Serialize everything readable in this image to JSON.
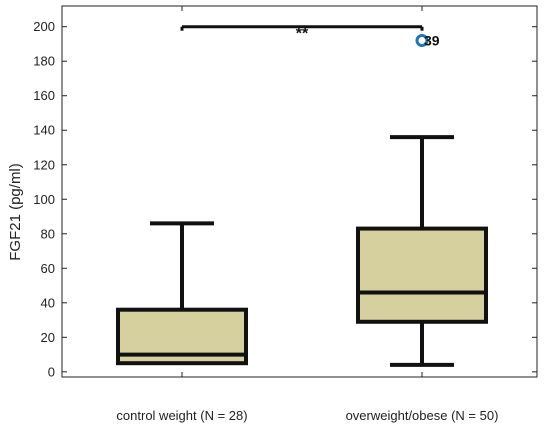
{
  "chart_data": {
    "type": "box",
    "ylabel": "FGF21 (pg/ml)",
    "ylim": [
      -3,
      212
    ],
    "y_ticks": [
      0,
      20,
      40,
      60,
      80,
      100,
      120,
      140,
      160,
      180,
      200
    ],
    "grid": false,
    "categories": [
      "control weight (N = 28)",
      "overweight/obese (N = 50)"
    ],
    "boxes": [
      {
        "category": "control weight (N = 28)",
        "whisker_low": 5,
        "q1": 5,
        "median": 10,
        "q3": 36,
        "whisker_high": 86,
        "outliers": []
      },
      {
        "category": "overweight/obese (N = 50)",
        "whisker_low": 4,
        "q1": 29,
        "median": 46,
        "q3": 83,
        "whisker_high": 136,
        "outliers": [
          {
            "value": 192,
            "label": "39"
          }
        ]
      }
    ],
    "significance": {
      "label": "**",
      "y": 200,
      "between": [
        0,
        1
      ]
    },
    "colors": {
      "box_fill": "#d6d09e",
      "box_stroke": "#111111",
      "outlier": "#1f77b4",
      "axis": "#222222"
    }
  }
}
